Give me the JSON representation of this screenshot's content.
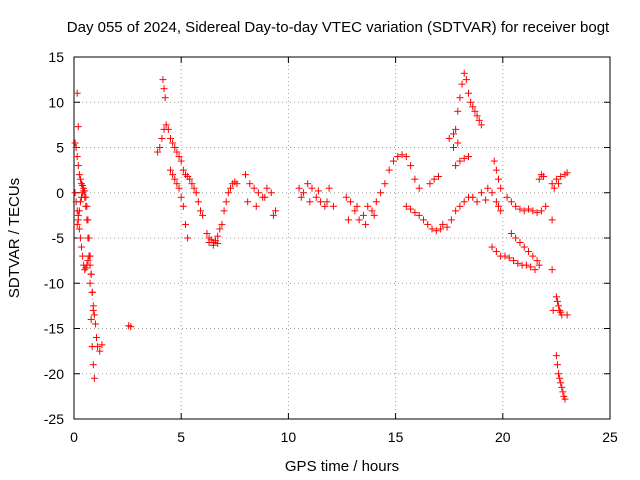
{
  "chart_data": {
    "type": "scatter",
    "title": "Day 055 of 2024, Sidereal Day-to-day VTEC variation (SDTVAR) for receiver bogt",
    "xlabel": "GPS time / hours",
    "ylabel": "SDTVAR / TECUs",
    "xlim": [
      0,
      25
    ],
    "ylim": [
      -25,
      15
    ],
    "xticks": [
      0,
      5,
      10,
      15,
      20,
      25
    ],
    "yticks": [
      -25,
      -20,
      -15,
      -10,
      -5,
      0,
      5,
      10,
      15
    ],
    "xtick_labels": [
      "0",
      "5",
      "10",
      "15",
      "20",
      "25"
    ],
    "ytick_labels": [
      "-25",
      "-20",
      "-15",
      "-10",
      "-5",
      "0",
      "5",
      "10",
      "15"
    ],
    "grid": true,
    "marker": "+",
    "color": "#ff0000",
    "series": [
      {
        "name": "SDTVAR",
        "x": [
          0.05,
          0.1,
          0.15,
          0.2,
          0.25,
          0.3,
          0.35,
          0.4,
          0.45,
          0.5,
          0.55,
          0.6,
          0.65,
          0.7,
          0.75,
          0.8,
          0.85,
          0.9,
          0.95,
          1.0,
          1.05,
          1.1,
          1.2,
          1.3,
          0.05,
          0.1,
          0.15,
          0.2,
          0.25,
          0.3,
          0.35,
          0.4,
          0.45,
          0.5,
          0.55,
          0.6,
          0.65,
          0.7,
          0.75,
          0.8,
          0.85,
          0.9,
          0.15,
          0.2,
          0.25,
          0.3,
          0.35,
          0.4,
          0.45,
          0.5,
          0.55,
          0.6,
          0.65,
          0.7,
          0.75,
          0.8,
          0.85,
          0.9,
          0.95,
          0.15,
          0.2,
          2.55,
          2.65,
          3.9,
          4.0,
          4.1,
          4.2,
          4.3,
          4.4,
          4.5,
          4.6,
          4.7,
          4.8,
          4.9,
          5.0,
          5.1,
          5.2,
          5.3,
          5.4,
          5.5,
          5.6,
          5.7,
          5.8,
          5.9,
          6.0,
          4.15,
          4.2,
          4.25,
          4.5,
          4.6,
          4.7,
          4.8,
          4.9,
          5.0,
          5.1,
          5.2,
          5.3,
          6.2,
          6.3,
          6.4,
          6.5,
          6.6,
          6.7,
          6.8,
          6.9,
          7.0,
          7.1,
          7.2,
          7.3,
          7.4,
          7.5,
          7.6,
          6.3,
          6.5,
          6.7,
          8.0,
          8.2,
          8.4,
          8.6,
          8.8,
          9.0,
          9.2,
          9.4,
          8.1,
          8.5,
          8.9,
          9.3,
          10.5,
          10.7,
          10.9,
          11.1,
          11.3,
          11.5,
          11.7,
          11.9,
          12.1,
          10.6,
          11.0,
          11.4,
          11.8,
          12.7,
          12.9,
          13.1,
          13.3,
          13.5,
          13.7,
          13.9,
          14.1,
          14.3,
          14.5,
          14.7,
          14.9,
          15.1,
          15.3,
          15.5,
          15.7,
          15.9,
          16.1,
          12.8,
          13.2,
          13.6,
          14.0,
          15.5,
          15.7,
          15.9,
          16.1,
          16.3,
          16.5,
          16.7,
          16.9,
          17.1,
          16.6,
          16.8,
          17.0,
          17.2,
          17.4,
          17.6,
          17.8,
          18.0,
          18.2,
          18.4,
          18.6,
          18.8,
          19.0,
          19.2,
          17.7,
          17.8,
          17.9,
          18.0,
          18.1,
          18.2,
          18.3,
          18.4,
          17.8,
          18.0,
          18.2,
          18.4,
          18.5,
          18.6,
          18.7,
          18.8,
          18.9,
          19.0,
          17.5,
          17.7,
          17.9,
          19.3,
          19.5,
          19.7,
          19.8,
          19.9,
          19.6,
          19.7,
          19.8,
          19.9,
          19.5,
          19.7,
          19.9,
          20.2,
          20.4,
          20.6,
          20.8,
          21.0,
          21.2,
          21.4,
          21.6,
          21.8,
          22.0,
          20.4,
          20.6,
          20.8,
          21.0,
          21.2,
          21.4,
          21.6,
          20.1,
          20.3,
          20.5,
          20.7,
          20.9,
          21.1,
          21.3,
          21.5,
          21.7,
          21.7,
          21.8,
          21.9,
          22.3,
          22.5,
          22.7,
          22.9,
          23.0,
          22.4,
          22.6,
          22.3,
          22.35,
          22.5,
          22.55,
          22.6,
          22.65,
          22.7,
          22.75,
          22.5,
          22.55,
          22.6,
          22.65,
          22.7,
          22.75,
          22.8,
          22.85,
          22.9,
          22.3,
          23.0
        ],
        "y": [
          5.5,
          5.0,
          4.0,
          3.0,
          2.0,
          1.5,
          1.0,
          0.8,
          0.5,
          0.2,
          -0.5,
          -1.5,
          -3.0,
          -5.0,
          -7.0,
          -9.0,
          -11.0,
          -12.5,
          -13.5,
          -14.5,
          -16.0,
          -17.0,
          -17.5,
          -16.8,
          0.0,
          -1.0,
          -2.0,
          -3.0,
          -4.0,
          -5.0,
          -6.0,
          -7.0,
          -8.0,
          -8.5,
          -8.3,
          -8.0,
          -7.5,
          -7.0,
          -8.0,
          -9.0,
          -11.0,
          -13.0,
          -3.5,
          -2.5,
          -2.0,
          -1.0,
          -0.5,
          0.0,
          0.2,
          -0.5,
          -1.5,
          -3.0,
          -5.0,
          -7.0,
          -10.0,
          -14.0,
          -17.0,
          -19.0,
          -20.5,
          11.0,
          7.3,
          -14.7,
          -14.8,
          4.5,
          5.0,
          6.0,
          7.0,
          7.5,
          7.0,
          6.0,
          5.5,
          5.0,
          4.5,
          4.0,
          3.5,
          2.5,
          2.0,
          1.8,
          1.5,
          1.0,
          0.5,
          0.0,
          -1.0,
          -2.0,
          -2.5,
          12.5,
          11.5,
          10.5,
          2.5,
          2.0,
          1.5,
          1.0,
          0.5,
          -0.5,
          -1.5,
          -3.5,
          -5.0,
          -4.5,
          -5.0,
          -5.2,
          -5.5,
          -5.3,
          -4.8,
          -4.0,
          -3.5,
          -2.0,
          -1.0,
          0.0,
          0.5,
          1.0,
          1.2,
          1.0,
          -5.5,
          -5.8,
          -5.6,
          2.0,
          1.0,
          0.5,
          0.0,
          -0.5,
          0.5,
          0.0,
          -2.0,
          -1.0,
          -1.5,
          -0.5,
          -2.5,
          0.5,
          0.0,
          1.0,
          0.5,
          -0.5,
          -1.0,
          -1.5,
          0.5,
          -1.5,
          -0.5,
          -1.0,
          0.2,
          -1.0,
          -0.5,
          -1.0,
          -2.0,
          -3.0,
          -2.5,
          -1.5,
          -2.0,
          -1.0,
          0.0,
          1.0,
          2.5,
          3.5,
          4.0,
          4.2,
          4.0,
          3.0,
          1.5,
          0.5,
          -3.0,
          -1.5,
          -3.5,
          -2.5,
          -1.5,
          -1.8,
          -2.2,
          -2.5,
          -3.0,
          -3.5,
          -4.0,
          -4.2,
          -4.0,
          1.0,
          1.5,
          1.8,
          -3.5,
          -3.8,
          -3.0,
          -2.0,
          -1.5,
          -1.0,
          -0.5,
          -0.5,
          -1.0,
          0.0,
          -0.8,
          5.0,
          7.0,
          9.0,
          10.5,
          12.0,
          13.2,
          12.5,
          11.0,
          3.0,
          3.5,
          3.8,
          4.0,
          10.0,
          9.5,
          9.0,
          8.5,
          8.0,
          7.5,
          6.0,
          6.5,
          5.5,
          0.5,
          0.0,
          -1.0,
          -1.5,
          -2.0,
          3.5,
          2.5,
          1.5,
          0.5,
          -6.0,
          -6.5,
          -7.0,
          -0.5,
          -1.0,
          -1.5,
          -1.8,
          -2.0,
          -1.8,
          -2.0,
          -2.2,
          -2.0,
          -1.5,
          -4.5,
          -5.0,
          -5.5,
          -6.0,
          -6.5,
          -7.0,
          -7.5,
          -7.0,
          -7.2,
          -7.5,
          -7.8,
          -8.0,
          -8.0,
          -8.2,
          -8.5,
          -8.0,
          1.5,
          2.0,
          1.8,
          1.0,
          1.5,
          1.8,
          2.0,
          2.2,
          0.5,
          1.0,
          -8.5,
          -13.0,
          -11.5,
          -12.0,
          -12.5,
          -13.0,
          -13.2,
          -13.5,
          -18.0,
          -19.0,
          -20.0,
          -20.5,
          -21.0,
          -21.5,
          -22.0,
          -22.5,
          -22.8,
          -3.0,
          -13.5
        ]
      }
    ]
  }
}
